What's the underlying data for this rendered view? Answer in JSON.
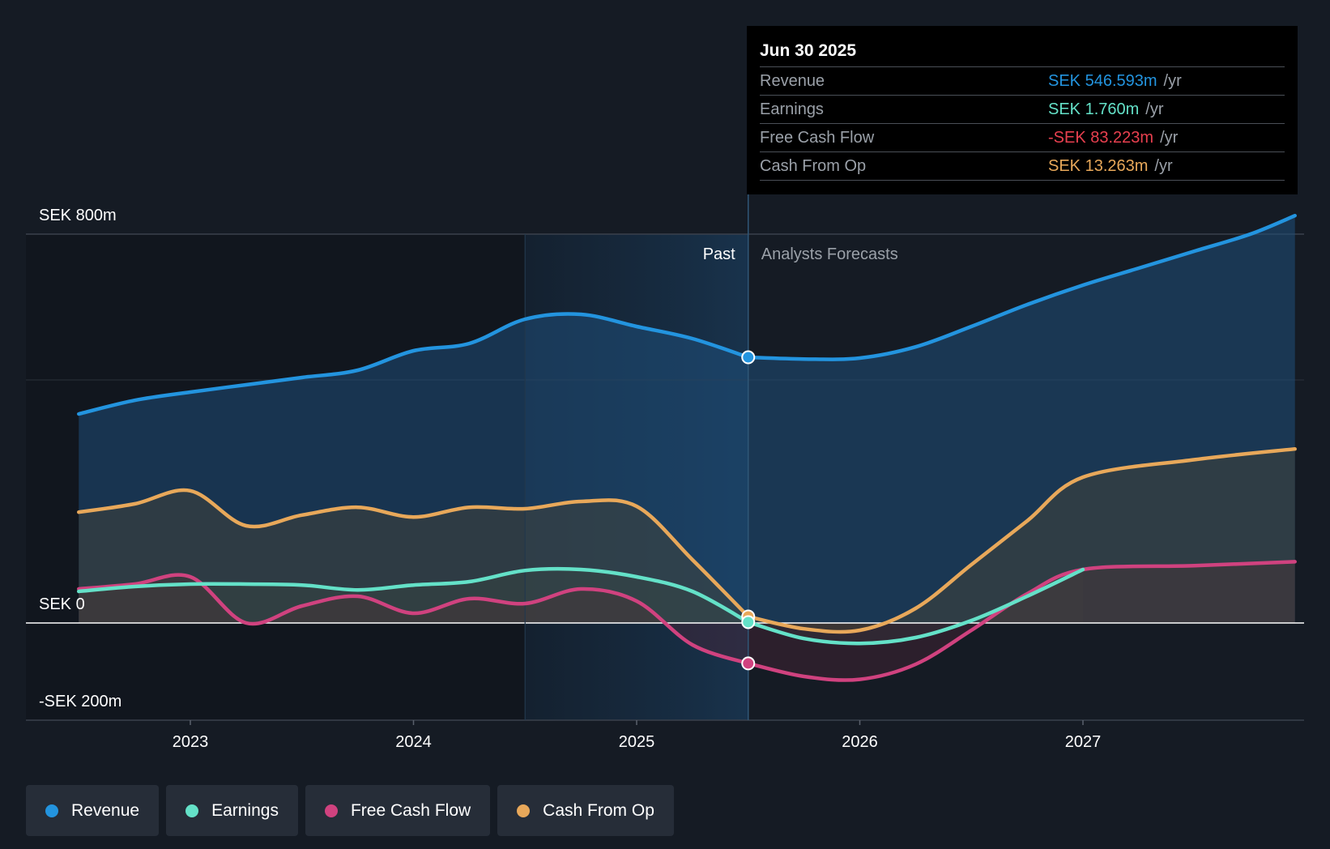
{
  "chart_data": {
    "type": "area",
    "title": "",
    "currency_axis_labels": {
      "top": "SEK 800m",
      "zero": "SEK 0",
      "bottom": "-SEK 200m"
    },
    "ylim": [
      -200,
      800
    ],
    "xlim": [
      2022.27,
      2027.95
    ],
    "x_ticks": [
      {
        "value": 2023,
        "label": "2023"
      },
      {
        "value": 2024,
        "label": "2024"
      },
      {
        "value": 2025,
        "label": "2025"
      },
      {
        "value": 2026,
        "label": "2026"
      },
      {
        "value": 2027,
        "label": "2027"
      }
    ],
    "present_x": 2025.5,
    "highlight_start_x": 2024.5,
    "past_label": "Past",
    "forecast_label": "Analysts Forecasts",
    "series": [
      {
        "name": "Revenue",
        "color": "#2394df",
        "past": [
          [
            2022.5,
            430
          ],
          [
            2022.75,
            458
          ],
          [
            2023.0,
            475
          ],
          [
            2023.25,
            490
          ],
          [
            2023.5,
            505
          ],
          [
            2023.75,
            520
          ],
          [
            2024.0,
            560
          ],
          [
            2024.25,
            575
          ],
          [
            2024.5,
            625
          ],
          [
            2024.75,
            635
          ],
          [
            2025.0,
            610
          ],
          [
            2025.25,
            585
          ],
          [
            2025.5,
            546.6
          ]
        ],
        "forecast": [
          [
            2025.5,
            546.6
          ],
          [
            2025.75,
            543
          ],
          [
            2026.0,
            545
          ],
          [
            2026.25,
            568
          ],
          [
            2026.5,
            610
          ],
          [
            2026.75,
            655
          ],
          [
            2027.0,
            695
          ],
          [
            2027.25,
            730
          ],
          [
            2027.5,
            765
          ],
          [
            2027.75,
            800
          ],
          [
            2027.95,
            838
          ]
        ]
      },
      {
        "name": "Earnings",
        "color": "#64e1c8",
        "past": [
          [
            2022.5,
            65
          ],
          [
            2022.75,
            75
          ],
          [
            2023.0,
            80
          ],
          [
            2023.25,
            80
          ],
          [
            2023.5,
            78
          ],
          [
            2023.75,
            68
          ],
          [
            2024.0,
            78
          ],
          [
            2024.25,
            85
          ],
          [
            2024.5,
            108
          ],
          [
            2024.75,
            110
          ],
          [
            2025.0,
            95
          ],
          [
            2025.25,
            65
          ],
          [
            2025.5,
            1.76
          ]
        ],
        "forecast": [
          [
            2025.5,
            1.76
          ],
          [
            2025.75,
            -32
          ],
          [
            2026.0,
            -42
          ],
          [
            2026.25,
            -30
          ],
          [
            2026.5,
            5
          ],
          [
            2026.75,
            55
          ],
          [
            2027.0,
            110
          ]
        ]
      },
      {
        "name": "Free Cash Flow",
        "color": "#d0427f",
        "past": [
          [
            2022.5,
            70
          ],
          [
            2022.75,
            80
          ],
          [
            2023.0,
            95
          ],
          [
            2023.25,
            0
          ],
          [
            2023.5,
            35
          ],
          [
            2023.75,
            55
          ],
          [
            2024.0,
            20
          ],
          [
            2024.25,
            50
          ],
          [
            2024.5,
            40
          ],
          [
            2024.75,
            70
          ],
          [
            2025.0,
            45
          ],
          [
            2025.25,
            -45
          ],
          [
            2025.5,
            -83.2
          ]
        ],
        "forecast": [
          [
            2025.5,
            -83.2
          ],
          [
            2025.75,
            -110
          ],
          [
            2026.0,
            -116
          ],
          [
            2026.25,
            -85
          ],
          [
            2026.5,
            -15
          ],
          [
            2026.75,
            60
          ],
          [
            2027.0,
            110
          ],
          [
            2027.5,
            118
          ],
          [
            2027.95,
            126
          ]
        ]
      },
      {
        "name": "Cash From Op",
        "color": "#e8a85a",
        "past": [
          [
            2022.5,
            228
          ],
          [
            2022.75,
            245
          ],
          [
            2023.0,
            272
          ],
          [
            2023.25,
            200
          ],
          [
            2023.5,
            222
          ],
          [
            2023.75,
            238
          ],
          [
            2024.0,
            218
          ],
          [
            2024.25,
            238
          ],
          [
            2024.5,
            235
          ],
          [
            2024.75,
            250
          ],
          [
            2025.0,
            240
          ],
          [
            2025.25,
            130
          ],
          [
            2025.5,
            13.3
          ]
        ],
        "forecast": [
          [
            2025.5,
            13.3
          ],
          [
            2025.75,
            -12
          ],
          [
            2026.0,
            -15
          ],
          [
            2026.25,
            30
          ],
          [
            2026.5,
            120
          ],
          [
            2026.75,
            210
          ],
          [
            2027.0,
            300
          ],
          [
            2027.5,
            336
          ],
          [
            2027.95,
            358
          ]
        ]
      }
    ]
  },
  "tooltip": {
    "date": "Jun 30 2025",
    "rows": [
      {
        "label": "Revenue",
        "value": "SEK 546.593m",
        "unit": "/yr",
        "color": "#2394df"
      },
      {
        "label": "Earnings",
        "value": "SEK 1.760m",
        "unit": "/yr",
        "color": "#64e1c8"
      },
      {
        "label": "Free Cash Flow",
        "value": "-SEK 83.223m",
        "unit": "/yr",
        "color": "#e8404f"
      },
      {
        "label": "Cash From Op",
        "value": "SEK 13.263m",
        "unit": "/yr",
        "color": "#e8a85a"
      }
    ]
  },
  "legend": [
    {
      "label": "Revenue",
      "color": "#2394df"
    },
    {
      "label": "Earnings",
      "color": "#64e1c8"
    },
    {
      "label": "Free Cash Flow",
      "color": "#d0427f"
    },
    {
      "label": "Cash From Op",
      "color": "#e8a85a"
    }
  ]
}
